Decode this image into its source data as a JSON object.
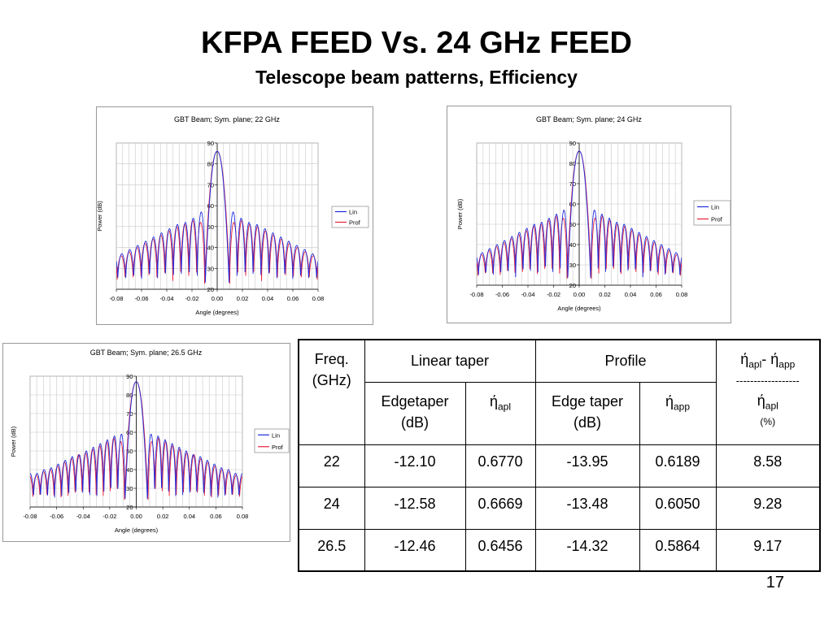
{
  "slide": {
    "title": "KFPA FEED Vs. 24 GHz FEED",
    "subtitle": "Telescope beam patterns, Efficiency",
    "page_number": "17"
  },
  "table": {
    "header": {
      "freq_line1": "Freq.",
      "freq_line2": "(GHz)",
      "linear_taper": "Linear taper",
      "profile": "Profile",
      "eta_main": "ή",
      "eta_apl_sub": "apl",
      "eta_dash": "- ή",
      "eta_app_sub": "app",
      "dashes": "------------------",
      "eta_apl2_sub": "apl",
      "percent": "(%)",
      "edgetaper_line1": "Edgetaper",
      "edgetaper_line2": "(dB)",
      "eta_apl_col": "ή",
      "eta_apl_col_sub": "apl",
      "edge_taper_line1": "Edge taper",
      "edge_taper_line2": "(dB)",
      "eta_app_col": "ή",
      "eta_app_col_sub": "app"
    },
    "rows": [
      {
        "freq": "22",
        "lin_edge": "-12.10",
        "lin_eta": "0.6770",
        "prof_edge": "-13.95",
        "prof_eta": "0.6189",
        "diff": "8.58"
      },
      {
        "freq": "24",
        "lin_edge": "-12.58",
        "lin_eta": "0.6669",
        "prof_edge": "-13.48",
        "prof_eta": "0.6050",
        "diff": "9.28"
      },
      {
        "freq": "26.5",
        "lin_edge": "-12.46",
        "lin_eta": "0.6456",
        "prof_edge": "-14.32",
        "prof_eta": "0.5864",
        "diff": "9.17"
      }
    ]
  },
  "series_colors": {
    "Lin": "#1f2bdc",
    "Prof": "#e8203a"
  },
  "chart_data": [
    {
      "type": "line",
      "title": "GBT Beam; Sym. plane; 22 GHz",
      "xlabel": "Angle (degrees)",
      "ylabel": "Power (dB)",
      "xlim": [
        -0.08,
        0.08
      ],
      "ylim": [
        20,
        90
      ],
      "xticks": [
        "-0.08",
        "-0.06",
        "-0.04",
        "-0.02",
        "0.00",
        "0.02",
        "0.04",
        "0.06",
        "0.08"
      ],
      "yticks": [
        "20",
        "30",
        "40",
        "50",
        "60",
        "70",
        "80",
        "90"
      ],
      "grid": true,
      "legend": "right",
      "series": [
        {
          "name": "Lin",
          "peak": 86,
          "main_lobe_halfwidth": 0.0095,
          "sidelobe_period": 0.0063,
          "sidelobes_near_to_far": [
            57,
            54,
            52,
            51,
            49,
            47,
            45,
            43,
            41,
            39,
            37
          ]
        },
        {
          "name": "Prof",
          "peak": 86,
          "main_lobe_halfwidth": 0.01,
          "sidelobe_period": 0.0063,
          "sidelobes_near_to_far": [
            52,
            53,
            51,
            50,
            48,
            46,
            44,
            42,
            40,
            38,
            36
          ]
        }
      ]
    },
    {
      "type": "line",
      "title": "GBT Beam; Sym. plane; 24 GHz",
      "xlabel": "Angle (degrees)",
      "ylabel": "Power (dB)",
      "xlim": [
        -0.08,
        0.08
      ],
      "ylim": [
        20,
        90
      ],
      "xticks": [
        "-0.08",
        "-0.06",
        "-0.04",
        "-0.02",
        "0.00",
        "0.02",
        "0.04",
        "0.06",
        "0.08"
      ],
      "yticks": [
        "20",
        "30",
        "40",
        "50",
        "60",
        "70",
        "80",
        "90"
      ],
      "grid": true,
      "legend": "right",
      "series": [
        {
          "name": "Lin",
          "peak": 86,
          "main_lobe_halfwidth": 0.009,
          "sidelobe_period": 0.0058,
          "sidelobes_near_to_far": [
            57,
            55,
            53,
            51,
            50,
            48,
            46,
            44,
            42,
            40,
            38,
            36
          ]
        },
        {
          "name": "Prof",
          "peak": 86,
          "main_lobe_halfwidth": 0.0095,
          "sidelobe_period": 0.0058,
          "sidelobes_near_to_far": [
            53,
            54,
            52,
            50,
            49,
            47,
            45,
            43,
            41,
            39,
            37,
            35
          ]
        }
      ]
    },
    {
      "type": "line",
      "title": "GBT Beam; Sym. plane; 26.5 GHz",
      "xlabel": "Angle (degrees)",
      "ylabel": "Power (dB)",
      "xlim": [
        -0.08,
        0.08
      ],
      "ylim": [
        20,
        90
      ],
      "xticks": [
        "-0.08",
        "-0.06",
        "-0.04",
        "-0.02",
        "0.00",
        "0.02",
        "0.04",
        "0.06",
        "0.08"
      ],
      "yticks": [
        "20",
        "30",
        "40",
        "50",
        "60",
        "70",
        "80",
        "90"
      ],
      "grid": true,
      "legend": "right",
      "series": [
        {
          "name": "Lin",
          "peak": 87,
          "main_lobe_halfwidth": 0.0085,
          "sidelobe_period": 0.0053,
          "sidelobes_near_to_far": [
            59,
            58,
            56,
            54,
            52,
            50,
            48,
            47,
            45,
            43,
            41,
            40,
            38
          ]
        },
        {
          "name": "Prof",
          "peak": 87,
          "main_lobe_halfwidth": 0.009,
          "sidelobe_period": 0.0053,
          "sidelobes_near_to_far": [
            55,
            57,
            55,
            53,
            51,
            49,
            48,
            46,
            44,
            42,
            40,
            39,
            37
          ]
        }
      ]
    }
  ]
}
